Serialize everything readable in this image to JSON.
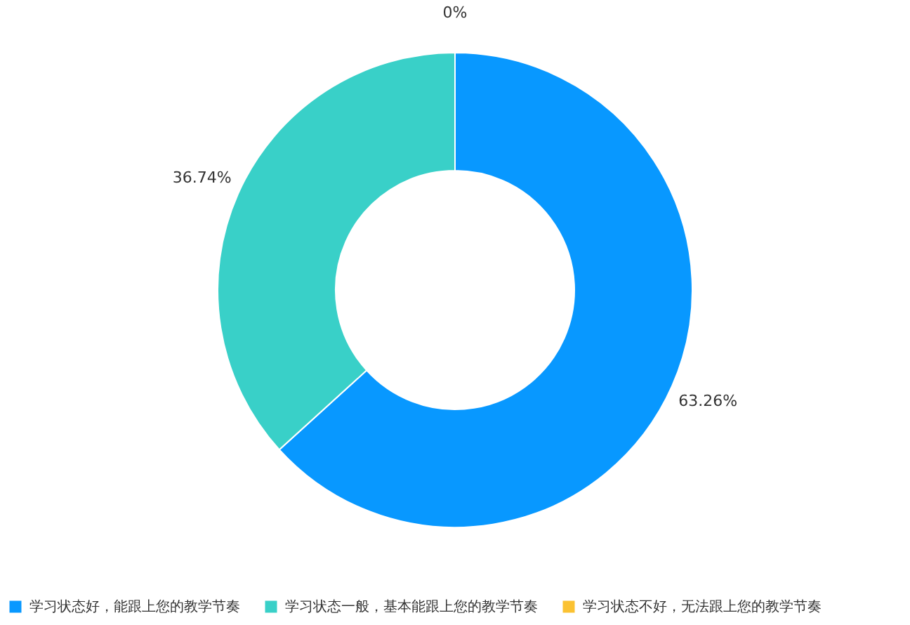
{
  "chart_data": {
    "type": "donut",
    "categories": [
      "学习状态好，能跟上您的教学节奏",
      "学习状态一般，基本能跟上您的教学节奏",
      "学习状态不好，无法跟上您的教学节奏"
    ],
    "values": [
      63.26,
      36.74,
      0
    ],
    "colors": [
      "#0898ff",
      "#39d0c8",
      "#fbc232"
    ],
    "value_labels": [
      "63.26%",
      "36.74%",
      "0%"
    ],
    "legend": "bottom"
  }
}
